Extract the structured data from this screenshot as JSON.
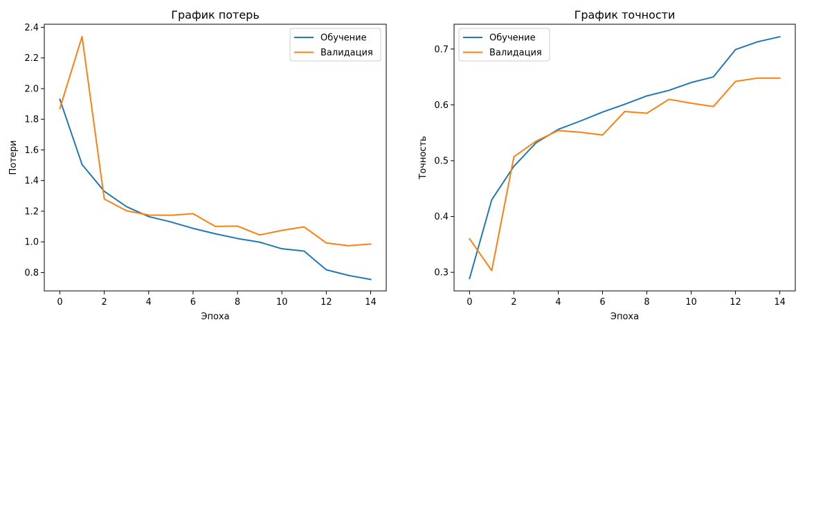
{
  "colors": {
    "train": "#1f77b4",
    "val": "#ff7f0e",
    "axis": "#000000",
    "background": "#ffffff"
  },
  "chart_data": [
    {
      "type": "line",
      "title": "График потерь",
      "xlabel": "Эпоха",
      "ylabel": "Потери",
      "xlim": [
        -0.7,
        14.7
      ],
      "ylim": [
        0.68,
        2.42
      ],
      "xticks": [
        0,
        2,
        4,
        6,
        8,
        10,
        12,
        14
      ],
      "yticks": [
        0.8,
        1.0,
        1.2,
        1.4,
        1.6,
        1.8,
        2.0,
        2.2,
        2.4
      ],
      "xtick_labels": [
        "0",
        "2",
        "4",
        "6",
        "8",
        "10",
        "12",
        "14"
      ],
      "ytick_labels": [
        "0.8",
        "1.0",
        "1.2",
        "1.4",
        "1.6",
        "1.8",
        "2.0",
        "2.2",
        "2.4"
      ],
      "grid": false,
      "legend": "top-right",
      "x": [
        0,
        1,
        2,
        3,
        4,
        5,
        6,
        7,
        8,
        9,
        10,
        11,
        12,
        13,
        14
      ],
      "series": [
        {
          "name": "Обучение",
          "color": "#1f77b4",
          "values": [
            1.93,
            1.505,
            1.33,
            1.23,
            1.165,
            1.13,
            1.088,
            1.053,
            1.022,
            0.998,
            0.955,
            0.94,
            0.818,
            0.781,
            0.755
          ]
        },
        {
          "name": "Валидация",
          "color": "#ff7f0e",
          "values": [
            1.87,
            2.34,
            1.28,
            1.203,
            1.175,
            1.174,
            1.184,
            1.101,
            1.103,
            1.045,
            1.075,
            1.098,
            0.993,
            0.975,
            0.986
          ]
        }
      ]
    },
    {
      "type": "line",
      "title": "График точности",
      "xlabel": "Эпоха",
      "ylabel": "Точность",
      "xlim": [
        -0.7,
        14.7
      ],
      "ylim": [
        0.2667,
        0.7444
      ],
      "xticks": [
        0,
        2,
        4,
        6,
        8,
        10,
        12,
        14
      ],
      "yticks": [
        0.3,
        0.4,
        0.5,
        0.6,
        0.7
      ],
      "xtick_labels": [
        "0",
        "2",
        "4",
        "6",
        "8",
        "10",
        "12",
        "14"
      ],
      "ytick_labels": [
        "0.3",
        "0.4",
        "0.5",
        "0.6",
        "0.7"
      ],
      "grid": false,
      "legend": "top-left",
      "x": [
        0,
        1,
        2,
        3,
        4,
        5,
        6,
        7,
        8,
        9,
        10,
        11,
        12,
        13,
        14
      ],
      "series": [
        {
          "name": "Обучение",
          "color": "#1f77b4",
          "values": [
            0.289,
            0.43,
            0.49,
            0.532,
            0.556,
            0.571,
            0.587,
            0.601,
            0.616,
            0.626,
            0.64,
            0.65,
            0.699,
            0.713,
            0.722
          ]
        },
        {
          "name": "Валидация",
          "color": "#ff7f0e",
          "values": [
            0.36,
            0.303,
            0.507,
            0.535,
            0.554,
            0.551,
            0.546,
            0.588,
            0.585,
            0.61,
            0.603,
            0.597,
            0.642,
            0.648,
            0.648
          ]
        }
      ]
    }
  ]
}
